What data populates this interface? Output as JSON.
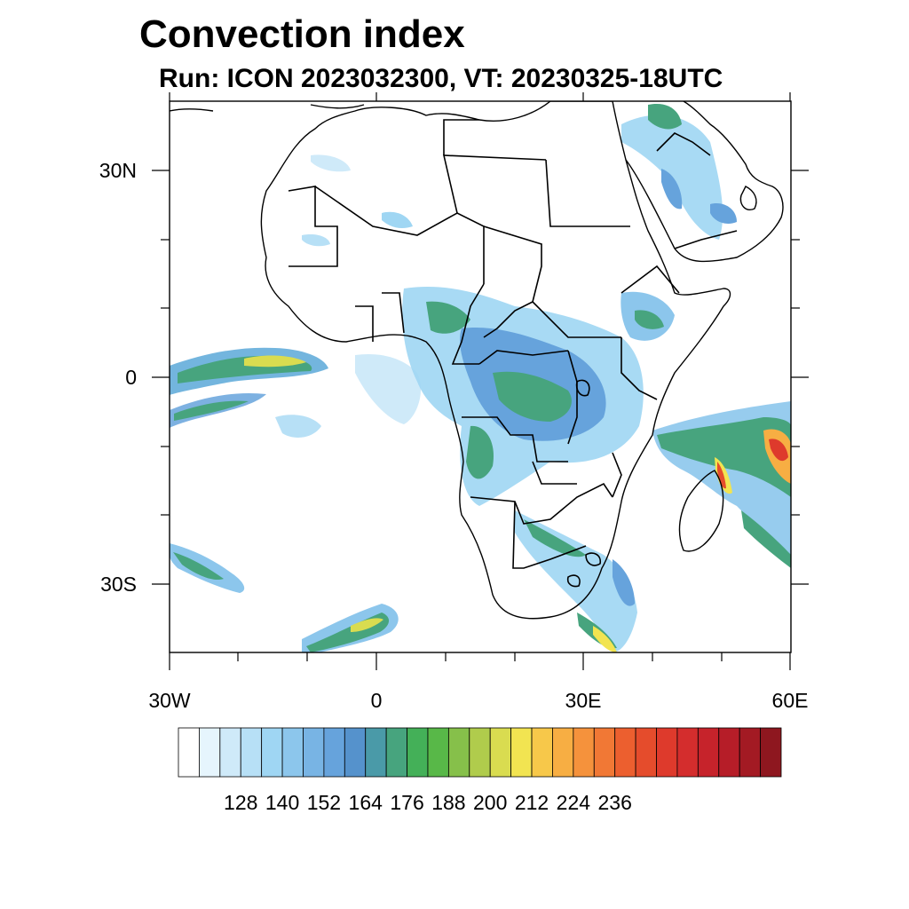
{
  "title": "Convection index",
  "subtitle": "Run: ICON 2023032300,  VT: 20230325-18UTC",
  "axes": {
    "x_labels": [
      "30W",
      "0",
      "30E",
      "60E"
    ],
    "y_labels": [
      "30N",
      "0",
      "30S"
    ]
  },
  "legend": {
    "labels": [
      "128",
      "140",
      "152",
      "164",
      "176",
      "188",
      "200",
      "212",
      "224",
      "236"
    ],
    "colors": [
      "#ffffff",
      "#e6f5fd",
      "#cfeaf9",
      "#b7e0f6",
      "#9fd6f3",
      "#8cc6ec",
      "#78b4e4",
      "#66a3dc",
      "#5592cc",
      "#4a9aa8",
      "#47a47e",
      "#44b058",
      "#58b848",
      "#86c04a",
      "#b0cc4c",
      "#d9dc50",
      "#f2e451",
      "#f7c84a",
      "#f7ae43",
      "#f5923c",
      "#f17835",
      "#ec5f2f",
      "#e54c2c",
      "#de3a2c",
      "#d42d2d",
      "#c6232b",
      "#b61d28",
      "#a31a23",
      "#8e171f"
    ]
  }
}
